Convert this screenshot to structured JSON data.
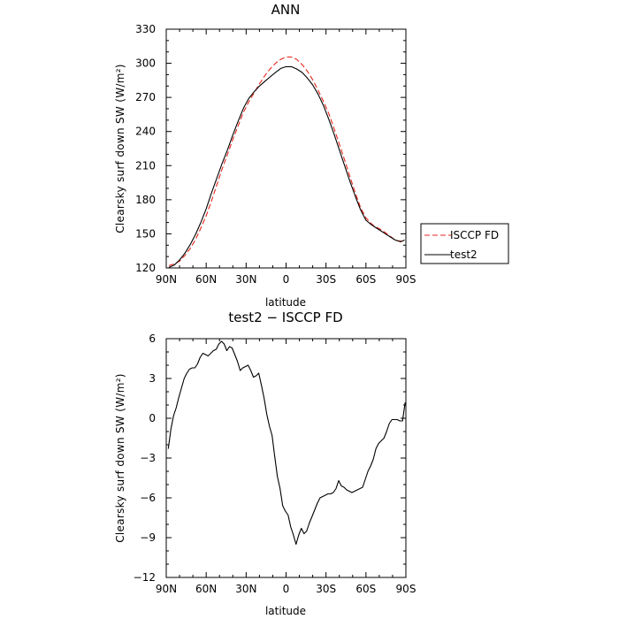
{
  "chart_data": [
    {
      "type": "line",
      "title": "ANN",
      "xlabel": "latitude",
      "ylabel": "Clearsky surf down SW (W/m²)",
      "xlim": [
        90,
        -90
      ],
      "ylim": [
        120,
        330
      ],
      "x_ticks": [
        90,
        60,
        30,
        0,
        -30,
        -60,
        -90
      ],
      "x_tick_labels": [
        "90N",
        "60N",
        "30N",
        "0",
        "30S",
        "60S",
        "90S"
      ],
      "y_ticks": [
        120,
        150,
        180,
        210,
        240,
        270,
        300,
        330
      ],
      "y_tick_labels": [
        "120",
        "150",
        "180",
        "210",
        "240",
        "270",
        "300",
        "330"
      ],
      "legend_position": "right",
      "series": [
        {
          "name": "ISCCP FD",
          "color": "#e8261c",
          "style": "dashed",
          "x": [
            88,
            84,
            80,
            76,
            72,
            68,
            64,
            60,
            56,
            52,
            48,
            44,
            40,
            36,
            32,
            28,
            24,
            20,
            16,
            12,
            8,
            4,
            0,
            -4,
            -8,
            -12,
            -16,
            -20,
            -24,
            -28,
            -32,
            -36,
            -40,
            -44,
            -48,
            -52,
            -56,
            -60,
            -64,
            -66,
            -70,
            -74,
            -78,
            -82,
            -86,
            -89
          ],
          "y": [
            122,
            123.5,
            126,
            131,
            137,
            145,
            155,
            166,
            179,
            193,
            207,
            220,
            233,
            245,
            257,
            266,
            274,
            282,
            289,
            295,
            300,
            303.5,
            305.5,
            305.5,
            303.5,
            299,
            293,
            285.5,
            276.5,
            266.5,
            256,
            243,
            229,
            215,
            200,
            186,
            173,
            164,
            159,
            157,
            154.5,
            151.5,
            148,
            144.5,
            143.5,
            144.5
          ]
        },
        {
          "name": "test2",
          "color": "#000000",
          "style": "solid",
          "x": [
            88,
            84,
            80,
            76,
            72,
            68,
            64,
            60,
            56,
            52,
            48,
            44,
            40,
            36,
            32,
            28,
            24,
            20,
            16,
            12,
            8,
            4,
            0,
            -4,
            -8,
            -12,
            -16,
            -20,
            -24,
            -28,
            -32,
            -36,
            -40,
            -44,
            -48,
            -52,
            -56,
            -60,
            -64,
            -66,
            -70,
            -74,
            -78,
            -82,
            -86,
            -89
          ],
          "y": [
            120.5,
            122.5,
            127,
            133,
            140.5,
            149.5,
            160,
            172,
            186,
            199,
            212,
            224,
            237,
            249,
            260.5,
            269,
            275,
            280,
            284,
            288,
            292,
            295.5,
            297,
            297,
            295,
            292,
            287,
            281,
            273,
            263,
            251,
            238,
            224,
            210,
            196,
            183,
            171,
            162,
            158,
            156.5,
            153.5,
            150.5,
            147.5,
            144.5,
            143,
            144.5
          ]
        }
      ]
    },
    {
      "type": "line",
      "title": "test2 − ISCCP FD",
      "xlabel": "latitude",
      "ylabel": "Clearsky surf down SW (W/m²)",
      "xlim": [
        90,
        -90
      ],
      "ylim": [
        -12,
        6
      ],
      "x_ticks": [
        90,
        60,
        30,
        0,
        -30,
        -60,
        -90
      ],
      "x_tick_labels": [
        "90N",
        "60N",
        "30N",
        "0",
        "30S",
        "60S",
        "90S"
      ],
      "y_ticks": [
        -12,
        -9,
        -6,
        -3,
        0,
        3,
        6
      ],
      "y_tick_labels": [
        "−12",
        "−9",
        "−6",
        "−3",
        "0",
        "3",
        "6"
      ],
      "series": [
        {
          "name": "",
          "color": "#000000",
          "style": "solid",
          "x": [
            88.5,
            86.5,
            84.5,
            82.5,
            80.5,
            78.5,
            76.5,
            74.5,
            72.5,
            70.5,
            68.5,
            66.5,
            64.5,
            62.5,
            60.5,
            58.5,
            56.5,
            54.5,
            52.5,
            50.5,
            48.5,
            46.5,
            44.5,
            42.5,
            40.5,
            38.5,
            36.5,
            34.5,
            32.5,
            30.5,
            28.5,
            26.5,
            24.5,
            22.5,
            20.5,
            18.5,
            16.5,
            14.5,
            12.5,
            10.5,
            8.5,
            6.5,
            4.5,
            2.5,
            0.5,
            -1.5,
            -3.5,
            -5.5,
            -7.5,
            -9.5,
            -11.5,
            -13.5,
            -15.5,
            -17.5,
            -19.5,
            -21.5,
            -23.5,
            -25.5,
            -27.5,
            -29.5,
            -31.5,
            -33.5,
            -35.5,
            -37.5,
            -39.5,
            -41.5,
            -43.5,
            -45.5,
            -47.5,
            -49.5,
            -51.5,
            -53.5,
            -55.5,
            -57.5,
            -59.5,
            -61.5,
            -63.5,
            -65.5,
            -67.5,
            -69.5,
            -71.5,
            -73.5,
            -75.5,
            -77.5,
            -79.5,
            -81.5,
            -83.5,
            -85.5,
            -87.5,
            -89.5
          ],
          "y": [
            -2.3,
            -0.8,
            0.2,
            0.8,
            1.6,
            2.3,
            3.0,
            3.4,
            3.7,
            3.8,
            3.8,
            4.1,
            4.6,
            4.9,
            4.8,
            4.7,
            4.9,
            5.1,
            5.2,
            5.6,
            5.8,
            5.6,
            5.1,
            5.4,
            5.3,
            4.8,
            4.3,
            3.6,
            3.8,
            3.9,
            4.0,
            3.6,
            3.1,
            3.2,
            3.4,
            2.5,
            1.5,
            0.3,
            -0.6,
            -1.3,
            -2.9,
            -4.4,
            -5.3,
            -6.6,
            -7.0,
            -7.3,
            -8.2,
            -8.8,
            -9.5,
            -8.8,
            -8.3,
            -8.7,
            -8.5,
            -7.9,
            -7.4,
            -6.9,
            -6.4,
            -6.0,
            -5.9,
            -5.8,
            -5.7,
            -5.7,
            -5.6,
            -5.3,
            -4.7,
            -5.1,
            -5.2,
            -5.4,
            -5.5,
            -5.6,
            -5.5,
            -5.4,
            -5.3,
            -5.2,
            -4.6,
            -4.0,
            -3.6,
            -3.1,
            -2.3,
            -1.9,
            -1.7,
            -1.5,
            -1.0,
            -0.4,
            -0.1,
            -0.1,
            -0.1,
            -0.2,
            -0.2,
            1.2
          ]
        }
      ]
    }
  ]
}
